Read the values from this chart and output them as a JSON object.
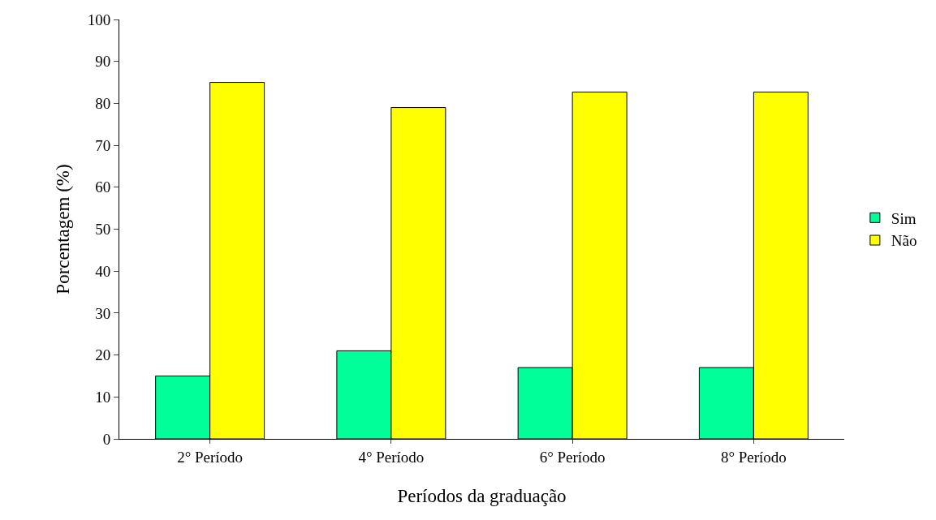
{
  "chart_data": {
    "type": "bar",
    "xlabel": "Períodos da graduação",
    "ylabel": "Porcentagem (%)",
    "categories": [
      "2° Período",
      "4° Período",
      "6° Período",
      "8° Período"
    ],
    "series": [
      {
        "name": "Sim",
        "color": "#00ff99",
        "values": [
          15,
          21,
          17,
          17
        ]
      },
      {
        "name": "Não",
        "color": "#ffff00",
        "values": [
          85,
          79,
          82.7,
          82.7
        ]
      }
    ],
    "ylim": [
      0,
      100
    ],
    "yticks": [
      0,
      10,
      20,
      30,
      40,
      50,
      60,
      70,
      80,
      90,
      100
    ],
    "grid": false,
    "legend": "right"
  }
}
